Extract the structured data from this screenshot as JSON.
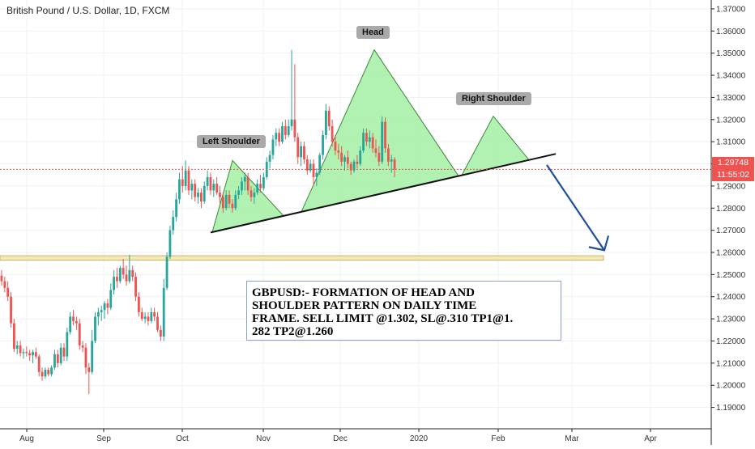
{
  "header": {
    "symbol_title": "British Pound / U.S. Dollar, 1D, FXCM"
  },
  "colors": {
    "up": "#26a69a",
    "down": "#ef5350",
    "pattern_fill": "#a8f0a8",
    "pattern_stroke": "#3a8a3a",
    "support": "#f5e9b5",
    "arrow": "#1f4e9e",
    "price_badge": "#ef5350"
  },
  "pattern_labels": {
    "left_shoulder": "Left Shoulder",
    "head": "Head",
    "right_shoulder": "Right Shoulder"
  },
  "note": {
    "line1": "GBPUSD:- FORMATION OF HEAD AND",
    "line2": "SHOULDER PATTERN ON DAILY TIME",
    "line3": "FRAME. SELL LIMIT @1.302, SL@.310 TP1@1.",
    "line4": "282 TP2@1.260"
  },
  "price_badge": {
    "price": "1.29748",
    "countdown": "11:55:02"
  },
  "chart_data": {
    "type": "candlestick",
    "title": "British Pound / U.S. Dollar, 1D, FXCM",
    "ylim": [
      1.184,
      1.374
    ],
    "y_ticks": [
      "1.19000",
      "1.20000",
      "1.21000",
      "1.22000",
      "1.23000",
      "1.24000",
      "1.25000",
      "1.26000",
      "1.27000",
      "1.28000",
      "1.29000",
      "1.30000",
      "1.31000",
      "1.32000",
      "1.33000",
      "1.34000",
      "1.35000",
      "1.36000",
      "1.37000"
    ],
    "x_ticks": [
      "Aug",
      "Sep",
      "Oct",
      "Nov",
      "Dec",
      "2020",
      "Feb",
      "Mar",
      "Apr"
    ],
    "current_price": 1.29748,
    "support_zone": [
      1.2565,
      1.2585
    ],
    "neckline": [
      [
        1.269,
        "2019-10-11"
      ],
      [
        1.3045,
        "2020-02-21"
      ]
    ],
    "head_and_shoulders": {
      "left_shoulder": 1.3015,
      "head": 1.3515,
      "right_shoulder": 1.3215
    },
    "projected_move": {
      "from": 1.2995,
      "to": 1.2595
    },
    "candles_ohlc": [
      [
        1.2495,
        1.252,
        1.245,
        1.247
      ],
      [
        1.247,
        1.249,
        1.242,
        1.244
      ],
      [
        1.244,
        1.247,
        1.238,
        1.24
      ],
      [
        1.24,
        1.242,
        1.226,
        1.228
      ],
      [
        1.228,
        1.23,
        1.215,
        1.2165
      ],
      [
        1.2165,
        1.22,
        1.214,
        1.218
      ],
      [
        1.218,
        1.22,
        1.213,
        1.2145
      ],
      [
        1.2145,
        1.2165,
        1.212,
        1.215
      ],
      [
        1.215,
        1.2175,
        1.213,
        1.2145
      ],
      [
        1.2145,
        1.216,
        1.211,
        1.2135
      ],
      [
        1.2135,
        1.216,
        1.21,
        1.215
      ],
      [
        1.215,
        1.217,
        1.212,
        1.213
      ],
      [
        1.213,
        1.214,
        1.204,
        1.206
      ],
      [
        1.206,
        1.208,
        1.202,
        1.204
      ],
      [
        1.204,
        1.208,
        1.203,
        1.207
      ],
      [
        1.207,
        1.208,
        1.204,
        1.205
      ],
      [
        1.205,
        1.209,
        1.204,
        1.208
      ],
      [
        1.208,
        1.216,
        1.207,
        1.214
      ],
      [
        1.214,
        1.216,
        1.208,
        1.21
      ],
      [
        1.21,
        1.219,
        1.209,
        1.217
      ],
      [
        1.217,
        1.219,
        1.211,
        1.213
      ],
      [
        1.213,
        1.226,
        1.211,
        1.224
      ],
      [
        1.224,
        1.233,
        1.223,
        1.231
      ],
      [
        1.231,
        1.234,
        1.227,
        1.229
      ],
      [
        1.229,
        1.231,
        1.225,
        1.228
      ],
      [
        1.228,
        1.23,
        1.216,
        1.218
      ],
      [
        1.218,
        1.22,
        1.215,
        1.217
      ],
      [
        1.217,
        1.219,
        1.205,
        1.208
      ],
      [
        1.208,
        1.21,
        1.196,
        1.206
      ],
      [
        1.206,
        1.225,
        1.205,
        1.22
      ],
      [
        1.22,
        1.233,
        1.219,
        1.231
      ],
      [
        1.231,
        1.235,
        1.227,
        1.233
      ],
      [
        1.233,
        1.236,
        1.229,
        1.234
      ],
      [
        1.234,
        1.238,
        1.23,
        1.237
      ],
      [
        1.237,
        1.239,
        1.232,
        1.235
      ],
      [
        1.235,
        1.246,
        1.234,
        1.243
      ],
      [
        1.243,
        1.252,
        1.241,
        1.249
      ],
      [
        1.249,
        1.253,
        1.244,
        1.247
      ],
      [
        1.247,
        1.254,
        1.246,
        1.253
      ],
      [
        1.253,
        1.257,
        1.248,
        1.25
      ],
      [
        1.25,
        1.254,
        1.245,
        1.247
      ],
      [
        1.247,
        1.259,
        1.246,
        1.252
      ],
      [
        1.252,
        1.254,
        1.247,
        1.249
      ],
      [
        1.249,
        1.251,
        1.238,
        1.24
      ],
      [
        1.24,
        1.242,
        1.231,
        1.233
      ],
      [
        1.233,
        1.235,
        1.229,
        1.23
      ],
      [
        1.23,
        1.233,
        1.228,
        1.231
      ],
      [
        1.231,
        1.233,
        1.227,
        1.229
      ],
      [
        1.229,
        1.235,
        1.228,
        1.233
      ],
      [
        1.233,
        1.235,
        1.229,
        1.231
      ],
      [
        1.231,
        1.233,
        1.224,
        1.225
      ],
      [
        1.225,
        1.227,
        1.22,
        1.222
      ],
      [
        1.222,
        1.248,
        1.22,
        1.244
      ],
      [
        1.244,
        1.26,
        1.243,
        1.258
      ],
      [
        1.258,
        1.272,
        1.257,
        1.27
      ],
      [
        1.27,
        1.279,
        1.268,
        1.276
      ],
      [
        1.276,
        1.287,
        1.274,
        1.284
      ],
      [
        1.284,
        1.296,
        1.282,
        1.293
      ],
      [
        1.293,
        1.299,
        1.287,
        1.29
      ],
      [
        1.29,
        1.3015,
        1.288,
        1.297
      ],
      [
        1.297,
        1.299,
        1.286,
        1.288
      ],
      [
        1.288,
        1.293,
        1.284,
        1.291
      ],
      [
        1.291,
        1.293,
        1.283,
        1.285
      ],
      [
        1.285,
        1.289,
        1.282,
        1.287
      ],
      [
        1.287,
        1.289,
        1.28,
        1.283
      ],
      [
        1.283,
        1.292,
        1.282,
        1.29
      ],
      [
        1.29,
        1.297,
        1.288,
        1.294
      ],
      [
        1.294,
        1.296,
        1.286,
        1.288
      ],
      [
        1.288,
        1.293,
        1.285,
        1.291
      ],
      [
        1.291,
        1.294,
        1.286,
        1.287
      ],
      [
        1.287,
        1.29,
        1.282,
        1.285
      ],
      [
        1.285,
        1.287,
        1.278,
        1.28
      ],
      [
        1.28,
        1.288,
        1.279,
        1.286
      ],
      [
        1.286,
        1.288,
        1.28,
        1.282
      ],
      [
        1.282,
        1.284,
        1.278,
        1.28
      ],
      [
        1.28,
        1.288,
        1.279,
        1.286
      ],
      [
        1.286,
        1.29,
        1.284,
        1.288
      ],
      [
        1.288,
        1.294,
        1.286,
        1.292
      ],
      [
        1.292,
        1.296,
        1.288,
        1.294
      ],
      [
        1.294,
        1.296,
        1.286,
        1.288
      ],
      [
        1.288,
        1.29,
        1.283,
        1.285
      ],
      [
        1.285,
        1.289,
        1.282,
        1.287
      ],
      [
        1.287,
        1.293,
        1.286,
        1.291
      ],
      [
        1.291,
        1.295,
        1.287,
        1.289
      ],
      [
        1.289,
        1.296,
        1.288,
        1.294
      ],
      [
        1.294,
        1.303,
        1.293,
        1.301
      ],
      [
        1.301,
        1.306,
        1.298,
        1.304
      ],
      [
        1.304,
        1.313,
        1.302,
        1.311
      ],
      [
        1.311,
        1.316,
        1.308,
        1.314
      ],
      [
        1.314,
        1.316,
        1.308,
        1.31
      ],
      [
        1.31,
        1.319,
        1.309,
        1.317
      ],
      [
        1.317,
        1.32,
        1.311,
        1.313
      ],
      [
        1.313,
        1.32,
        1.312,
        1.317
      ],
      [
        1.317,
        1.3515,
        1.315,
        1.32
      ],
      [
        1.32,
        1.345,
        1.31,
        1.312
      ],
      [
        1.312,
        1.314,
        1.3,
        1.303
      ],
      [
        1.303,
        1.31,
        1.299,
        1.308
      ],
      [
        1.308,
        1.31,
        1.3,
        1.302
      ],
      [
        1.302,
        1.304,
        1.295,
        1.297
      ],
      [
        1.297,
        1.302,
        1.296,
        1.3
      ],
      [
        1.3,
        1.302,
        1.29,
        1.294
      ],
      [
        1.294,
        1.298,
        1.29,
        1.296
      ],
      [
        1.296,
        1.305,
        1.295,
        1.304
      ],
      [
        1.304,
        1.315,
        1.302,
        1.313
      ],
      [
        1.313,
        1.327,
        1.311,
        1.324
      ],
      [
        1.324,
        1.326,
        1.315,
        1.317
      ],
      [
        1.317,
        1.32,
        1.308,
        1.31
      ],
      [
        1.31,
        1.313,
        1.304,
        1.306
      ],
      [
        1.306,
        1.309,
        1.302,
        1.305
      ],
      [
        1.305,
        1.308,
        1.299,
        1.301
      ],
      [
        1.301,
        1.304,
        1.297,
        1.303
      ],
      [
        1.303,
        1.306,
        1.298,
        1.3
      ],
      [
        1.3,
        1.301,
        1.295,
        1.297
      ],
      [
        1.297,
        1.302,
        1.296,
        1.301
      ],
      [
        1.301,
        1.304,
        1.298,
        1.3
      ],
      [
        1.3,
        1.308,
        1.299,
        1.306
      ],
      [
        1.306,
        1.316,
        1.305,
        1.314
      ],
      [
        1.314,
        1.316,
        1.308,
        1.31
      ],
      [
        1.31,
        1.315,
        1.307,
        1.312
      ],
      [
        1.312,
        1.314,
        1.305,
        1.307
      ],
      [
        1.307,
        1.311,
        1.303,
        1.305
      ],
      [
        1.305,
        1.308,
        1.299,
        1.301
      ],
      [
        1.301,
        1.3215,
        1.3,
        1.319
      ],
      [
        1.319,
        1.321,
        1.305,
        1.307
      ],
      [
        1.307,
        1.309,
        1.299,
        1.301
      ],
      [
        1.301,
        1.304,
        1.296,
        1.302
      ],
      [
        1.302,
        1.303,
        1.294,
        1.2975
      ]
    ]
  }
}
